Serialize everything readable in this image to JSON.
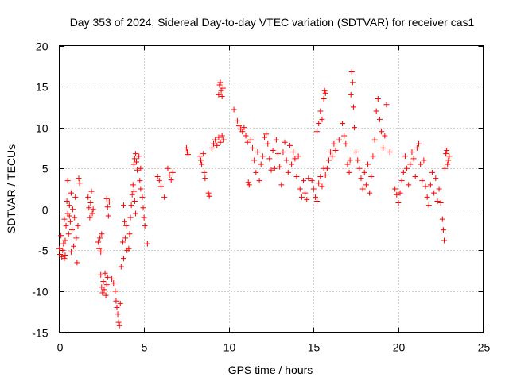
{
  "chart_data": {
    "type": "scatter",
    "title": "Day 353 of 2024, Sidereal Day-to-day VTEC variation (SDTVAR) for receiver cas1",
    "xlabel": "GPS time / hours",
    "ylabel": "SDTVAR / TECUs",
    "xlim": [
      0,
      25
    ],
    "ylim": [
      -15,
      20
    ],
    "xticks": [
      0,
      5,
      10,
      15,
      20,
      25
    ],
    "xtick_labels": [
      "0",
      "5",
      "10",
      "15",
      "20",
      "25"
    ],
    "yticks": [
      -15,
      -10,
      -5,
      0,
      5,
      10,
      15,
      20
    ],
    "ytick_labels": [
      "-15",
      "-10",
      "-5",
      "0",
      "5",
      "10",
      "15",
      "20"
    ],
    "grid": true,
    "marker": "+",
    "series": [
      {
        "name": "SDTVAR",
        "color": "#ff0000",
        "points": [
          [
            0.0,
            -4.8
          ],
          [
            0.05,
            -5.5
          ],
          [
            0.1,
            -3.2
          ],
          [
            0.15,
            -5.8
          ],
          [
            0.2,
            -5.0
          ],
          [
            0.25,
            -4.2
          ],
          [
            0.3,
            -6.0
          ],
          [
            0.35,
            -5.6
          ],
          [
            0.4,
            -2.0
          ],
          [
            0.45,
            1.0
          ],
          [
            0.5,
            3.5
          ],
          [
            0.5,
            -0.5
          ],
          [
            0.55,
            -3.0
          ],
          [
            0.6,
            0.5
          ],
          [
            0.65,
            -1.5
          ],
          [
            0.7,
            2.0
          ],
          [
            0.75,
            -2.5
          ],
          [
            0.8,
            0.0
          ],
          [
            0.85,
            -4.5
          ],
          [
            0.9,
            -1.0
          ],
          [
            0.95,
            1.5
          ],
          [
            1.0,
            -3.5
          ],
          [
            1.05,
            -6.5
          ],
          [
            1.1,
            -2.0
          ],
          [
            1.15,
            3.8
          ],
          [
            1.2,
            3.2
          ],
          [
            0.3,
            -1.2
          ],
          [
            0.35,
            -3.8
          ],
          [
            0.6,
            -0.8
          ],
          [
            0.7,
            -5.2
          ],
          [
            1.7,
            1.5
          ],
          [
            1.75,
            0.2
          ],
          [
            1.8,
            -1.0
          ],
          [
            1.85,
            0.8
          ],
          [
            1.9,
            2.2
          ],
          [
            1.95,
            -0.5
          ],
          [
            2.0,
            0.0
          ],
          [
            2.3,
            -4.0
          ],
          [
            2.35,
            -4.8
          ],
          [
            2.4,
            -3.5
          ],
          [
            2.45,
            -5.2
          ],
          [
            2.5,
            -3.0
          ],
          [
            2.45,
            -8.0
          ],
          [
            2.5,
            -9.5
          ],
          [
            2.55,
            -10.2
          ],
          [
            2.6,
            -8.8
          ],
          [
            2.65,
            -9.8
          ],
          [
            2.7,
            -7.8
          ],
          [
            2.75,
            -10.5
          ],
          [
            2.8,
            -9.2
          ],
          [
            2.85,
            -8.3
          ],
          [
            2.8,
            1.3
          ],
          [
            2.85,
            0.3
          ],
          [
            2.9,
            -0.8
          ],
          [
            2.95,
            0.9
          ],
          [
            3.1,
            -8.5
          ],
          [
            3.2,
            -9.0
          ],
          [
            3.3,
            -10.0
          ],
          [
            3.35,
            -11.2
          ],
          [
            3.4,
            -12.0
          ],
          [
            3.45,
            -12.8
          ],
          [
            3.5,
            -13.8
          ],
          [
            3.55,
            -14.2
          ],
          [
            3.6,
            -11.5
          ],
          [
            3.65,
            -7.0
          ],
          [
            3.8,
            -6.0
          ],
          [
            3.75,
            -4.0
          ],
          [
            3.8,
            0.5
          ],
          [
            3.85,
            -1.5
          ],
          [
            3.9,
            -3.5
          ],
          [
            3.95,
            -2.0
          ],
          [
            4.0,
            -5.0
          ],
          [
            4.1,
            -4.8
          ],
          [
            4.15,
            -3.0
          ],
          [
            4.2,
            -1.0
          ],
          [
            4.25,
            0.5
          ],
          [
            4.3,
            1.8
          ],
          [
            4.35,
            3.0
          ],
          [
            4.4,
            2.2
          ],
          [
            4.45,
            1.0
          ],
          [
            4.5,
            -0.5
          ],
          [
            4.4,
            5.5
          ],
          [
            4.45,
            6.2
          ],
          [
            4.5,
            6.8
          ],
          [
            4.55,
            5.8
          ],
          [
            4.6,
            4.8
          ],
          [
            4.7,
            6.5
          ],
          [
            4.8,
            5.0
          ],
          [
            4.75,
            3.5
          ],
          [
            4.8,
            2.5
          ],
          [
            4.9,
            1.5
          ],
          [
            4.95,
            0.2
          ],
          [
            5.0,
            -1.0
          ],
          [
            5.05,
            -2.0
          ],
          [
            5.2,
            -4.2
          ],
          [
            5.8,
            4.0
          ],
          [
            5.9,
            3.5
          ],
          [
            6.0,
            2.8
          ],
          [
            6.2,
            1.5
          ],
          [
            6.4,
            5.0
          ],
          [
            6.5,
            4.2
          ],
          [
            6.6,
            3.6
          ],
          [
            6.7,
            4.5
          ],
          [
            7.5,
            7.5
          ],
          [
            7.55,
            7.0
          ],
          [
            7.6,
            6.7
          ],
          [
            8.3,
            6.5
          ],
          [
            8.35,
            6.0
          ],
          [
            8.4,
            5.5
          ],
          [
            8.5,
            6.8
          ],
          [
            8.55,
            4.5
          ],
          [
            8.6,
            3.8
          ],
          [
            8.8,
            2.0
          ],
          [
            8.85,
            1.6
          ],
          [
            9.0,
            7.5
          ],
          [
            9.1,
            8.0
          ],
          [
            9.2,
            8.5
          ],
          [
            9.3,
            7.8
          ],
          [
            9.4,
            8.8
          ],
          [
            9.5,
            8.2
          ],
          [
            9.6,
            9.0
          ],
          [
            9.7,
            8.5
          ],
          [
            9.4,
            14.0
          ],
          [
            9.45,
            15.2
          ],
          [
            9.5,
            15.5
          ],
          [
            9.55,
            14.5
          ],
          [
            9.6,
            13.8
          ],
          [
            9.65,
            14.8
          ],
          [
            10.3,
            12.2
          ],
          [
            10.5,
            10.8
          ],
          [
            10.6,
            10.2
          ],
          [
            10.7,
            9.8
          ],
          [
            10.8,
            9.5
          ],
          [
            10.9,
            10.0
          ],
          [
            11.0,
            9.0
          ],
          [
            11.1,
            8.2
          ],
          [
            11.15,
            3.3
          ],
          [
            11.2,
            3.0
          ],
          [
            11.3,
            8.5
          ],
          [
            11.4,
            7.5
          ],
          [
            11.5,
            6.0
          ],
          [
            11.6,
            4.5
          ],
          [
            11.7,
            7.0
          ],
          [
            11.8,
            3.5
          ],
          [
            11.9,
            5.5
          ],
          [
            12.0,
            6.5
          ],
          [
            12.1,
            8.8
          ],
          [
            12.2,
            9.2
          ],
          [
            12.3,
            8.0
          ],
          [
            12.4,
            6.2
          ],
          [
            12.5,
            4.8
          ],
          [
            12.6,
            7.2
          ],
          [
            12.7,
            5.0
          ],
          [
            12.8,
            8.5
          ],
          [
            12.9,
            6.8
          ],
          [
            13.0,
            5.2
          ],
          [
            13.1,
            3.0
          ],
          [
            13.2,
            7.0
          ],
          [
            13.3,
            8.2
          ],
          [
            13.4,
            6.0
          ],
          [
            13.5,
            4.5
          ],
          [
            13.6,
            7.8
          ],
          [
            13.7,
            5.5
          ],
          [
            13.8,
            7.0
          ],
          [
            13.9,
            6.2
          ],
          [
            14.0,
            4.0
          ],
          [
            14.1,
            6.5
          ],
          [
            14.2,
            2.5
          ],
          [
            14.3,
            1.5
          ],
          [
            14.4,
            3.5
          ],
          [
            14.5,
            2.0
          ],
          [
            14.6,
            1.2
          ],
          [
            14.7,
            3.8
          ],
          [
            14.9,
            3.5
          ],
          [
            15.0,
            2.5
          ],
          [
            15.1,
            1.5
          ],
          [
            15.2,
            1.0
          ],
          [
            15.3,
            3.2
          ],
          [
            15.4,
            4.0
          ],
          [
            15.5,
            2.8
          ],
          [
            15.6,
            5.0
          ],
          [
            15.7,
            4.2
          ],
          [
            15.2,
            9.5
          ],
          [
            15.3,
            10.5
          ],
          [
            15.4,
            12.0
          ],
          [
            15.5,
            11.0
          ],
          [
            15.6,
            13.5
          ],
          [
            15.65,
            14.5
          ],
          [
            15.7,
            14.2
          ],
          [
            15.8,
            5.0
          ],
          [
            15.9,
            6.0
          ],
          [
            16.0,
            7.0
          ],
          [
            16.1,
            6.5
          ],
          [
            16.2,
            8.0
          ],
          [
            16.3,
            7.2
          ],
          [
            16.5,
            8.5
          ],
          [
            16.7,
            10.5
          ],
          [
            16.8,
            9.0
          ],
          [
            16.9,
            8.0
          ],
          [
            17.0,
            5.5
          ],
          [
            17.1,
            4.5
          ],
          [
            17.15,
            6.0
          ],
          [
            17.2,
            14.0
          ],
          [
            17.25,
            16.8
          ],
          [
            17.3,
            15.5
          ],
          [
            17.35,
            12.5
          ],
          [
            17.4,
            10.0
          ],
          [
            17.5,
            7.0
          ],
          [
            17.6,
            6.0
          ],
          [
            17.7,
            5.0
          ],
          [
            17.8,
            3.8
          ],
          [
            17.9,
            2.5
          ],
          [
            18.0,
            4.5
          ],
          [
            18.1,
            3.0
          ],
          [
            18.2,
            5.5
          ],
          [
            18.3,
            2.0
          ],
          [
            18.4,
            4.0
          ],
          [
            18.5,
            6.5
          ],
          [
            18.6,
            8.5
          ],
          [
            18.7,
            12.0
          ],
          [
            18.8,
            13.5
          ],
          [
            18.9,
            11.0
          ],
          [
            19.0,
            9.5
          ],
          [
            19.1,
            7.5
          ],
          [
            19.2,
            9.0
          ],
          [
            19.3,
            12.8
          ],
          [
            19.5,
            7.0
          ],
          [
            19.8,
            2.5
          ],
          [
            19.9,
            1.8
          ],
          [
            20.0,
            0.8
          ],
          [
            20.1,
            2.0
          ],
          [
            20.2,
            3.5
          ],
          [
            20.3,
            4.5
          ],
          [
            20.4,
            6.5
          ],
          [
            20.5,
            5.0
          ],
          [
            20.6,
            3.0
          ],
          [
            20.7,
            5.5
          ],
          [
            20.8,
            7.0
          ],
          [
            20.9,
            6.2
          ],
          [
            21.0,
            4.0
          ],
          [
            21.1,
            7.5
          ],
          [
            21.2,
            8.0
          ],
          [
            21.3,
            5.5
          ],
          [
            21.4,
            3.5
          ],
          [
            21.5,
            6.0
          ],
          [
            21.6,
            2.8
          ],
          [
            21.7,
            1.5
          ],
          [
            21.8,
            0.5
          ],
          [
            21.9,
            3.0
          ],
          [
            22.0,
            4.5
          ],
          [
            22.1,
            2.0
          ],
          [
            22.2,
            3.8
          ],
          [
            22.3,
            1.0
          ],
          [
            22.4,
            2.5
          ],
          [
            22.5,
            0.8
          ],
          [
            22.6,
            -1.2
          ],
          [
            22.65,
            -2.5
          ],
          [
            22.7,
            -3.8
          ],
          [
            22.75,
            5.0
          ],
          [
            22.8,
            6.8
          ],
          [
            22.85,
            7.2
          ],
          [
            22.9,
            5.5
          ],
          [
            22.95,
            6.0
          ],
          [
            23.0,
            6.5
          ]
        ]
      }
    ]
  }
}
